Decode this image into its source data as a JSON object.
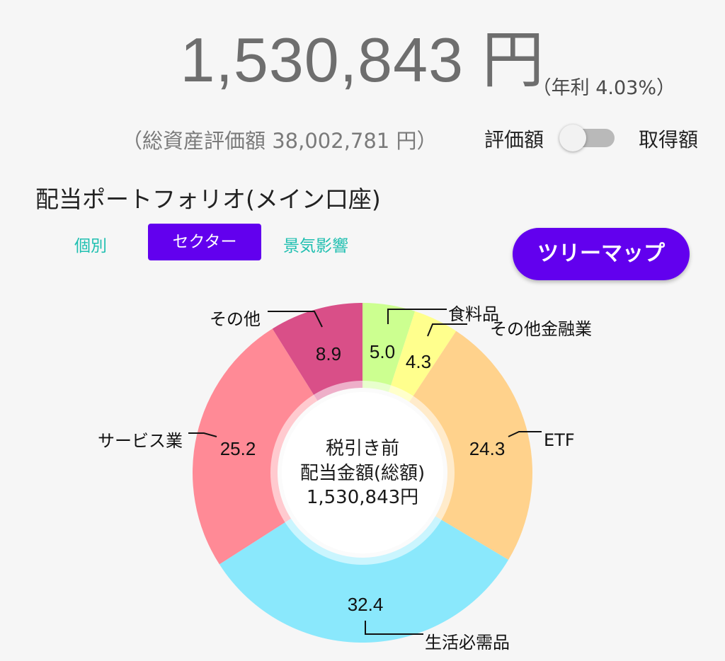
{
  "summary": {
    "dividend_total": "1,530,843 円",
    "annual_rate": "（年利 4.03%）",
    "total_asset": "（総資産評価額 38,002,781 円）"
  },
  "toggle": {
    "left_label": "評価額",
    "right_label": "取得額",
    "state": "left"
  },
  "portfolio": {
    "title": "配当ポートフォリオ(メイン口座)",
    "tabs": [
      {
        "label": "個別",
        "selected": false
      },
      {
        "label": "セクター",
        "selected": true
      },
      {
        "label": "景気影響",
        "selected": false
      }
    ],
    "treemap_button": "ツリーマップ"
  },
  "colors": {
    "accent": "#6200ee",
    "tab_text": "#1fbfb0"
  },
  "chart_data": {
    "type": "pie",
    "center_lines": [
      "税引き前",
      "配当金額(総額)",
      "1,530,843円"
    ],
    "slices": [
      {
        "name": "食料品",
        "value": 5.0,
        "color": "#ccff90"
      },
      {
        "name": "その他金融業",
        "value": 4.3,
        "color": "#ffff8d"
      },
      {
        "name": "ETF",
        "value": 24.3,
        "color": "#ffd28c"
      },
      {
        "name": "生活必需品",
        "value": 32.4,
        "color": "#8ae8fc"
      },
      {
        "name": "サービス業",
        "value": 25.2,
        "color": "#ff8a96"
      },
      {
        "name": "その他",
        "value": 8.9,
        "color": "#d94f88"
      }
    ]
  }
}
